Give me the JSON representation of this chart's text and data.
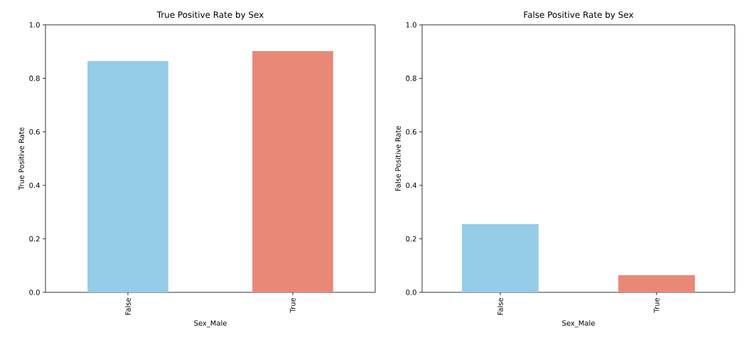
{
  "chart_data": [
    {
      "type": "bar",
      "title": "True Positive Rate by Sex",
      "xlabel": "Sex_Male",
      "ylabel": "True Positive Rate",
      "categories": [
        "False",
        "True"
      ],
      "values": [
        0.865,
        0.902
      ],
      "colors": [
        "#95cce8",
        "#ea8878"
      ],
      "ylim": [
        0,
        1
      ],
      "yticks": [
        {
          "value": 0,
          "label": "0.0"
        },
        {
          "value": 0.2,
          "label": "0.2"
        },
        {
          "value": 0.4,
          "label": "0.4"
        },
        {
          "value": 0.6,
          "label": "0.6"
        },
        {
          "value": 0.8,
          "label": "0.8"
        },
        {
          "value": 1,
          "label": "1.0"
        }
      ]
    },
    {
      "type": "bar",
      "title": "False Positive Rate by Sex",
      "xlabel": "Sex_Male",
      "ylabel": "False Positive Rate",
      "categories": [
        "False",
        "True"
      ],
      "values": [
        0.255,
        0.064
      ],
      "colors": [
        "#95cce8",
        "#ea8878"
      ],
      "ylim": [
        0,
        1
      ],
      "yticks": [
        {
          "value": 0,
          "label": "0.0"
        },
        {
          "value": 0.2,
          "label": "0.2"
        },
        {
          "value": 0.4,
          "label": "0.4"
        },
        {
          "value": 0.6,
          "label": "0.6"
        },
        {
          "value": 0.8,
          "label": "0.8"
        },
        {
          "value": 1,
          "label": "1.0"
        }
      ]
    }
  ]
}
